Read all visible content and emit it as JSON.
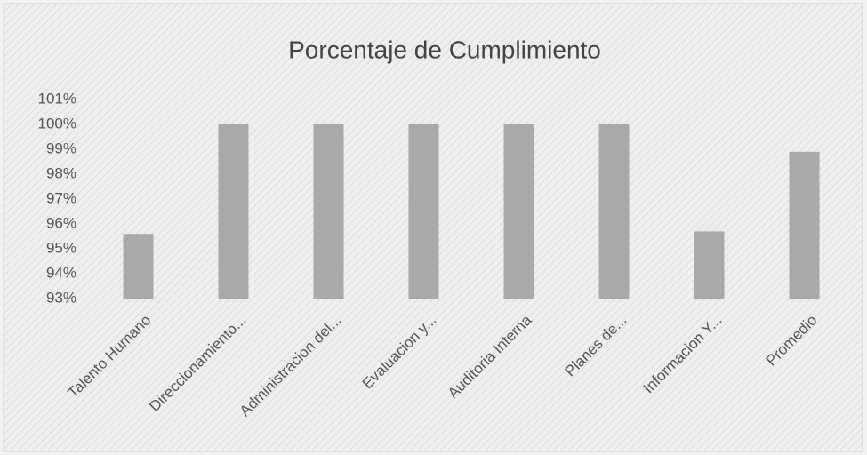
{
  "chart_data": {
    "type": "bar",
    "title": "Porcentaje de Cumplimiento",
    "categories": [
      "Talento Humano",
      "Direccionamiento...",
      "Administracion del...",
      "Evaluacion y...",
      "Auditoria Interna",
      "Planes de...",
      "Informacion Y...",
      "Promedio"
    ],
    "values": [
      95.6,
      100,
      100,
      100,
      100,
      100,
      95.7,
      98.9
    ],
    "color": "#a9a9a9",
    "ylim": [
      93,
      101
    ],
    "yticks": [
      {
        "value": 93,
        "label": "93%"
      },
      {
        "value": 94,
        "label": "94%"
      },
      {
        "value": 95,
        "label": "95%"
      },
      {
        "value": 96,
        "label": "96%"
      },
      {
        "value": 97,
        "label": "97%"
      },
      {
        "value": 98,
        "label": "98%"
      },
      {
        "value": 99,
        "label": "99%"
      },
      {
        "value": 100,
        "label": "100%"
      },
      {
        "value": 101,
        "label": "101%"
      }
    ]
  }
}
